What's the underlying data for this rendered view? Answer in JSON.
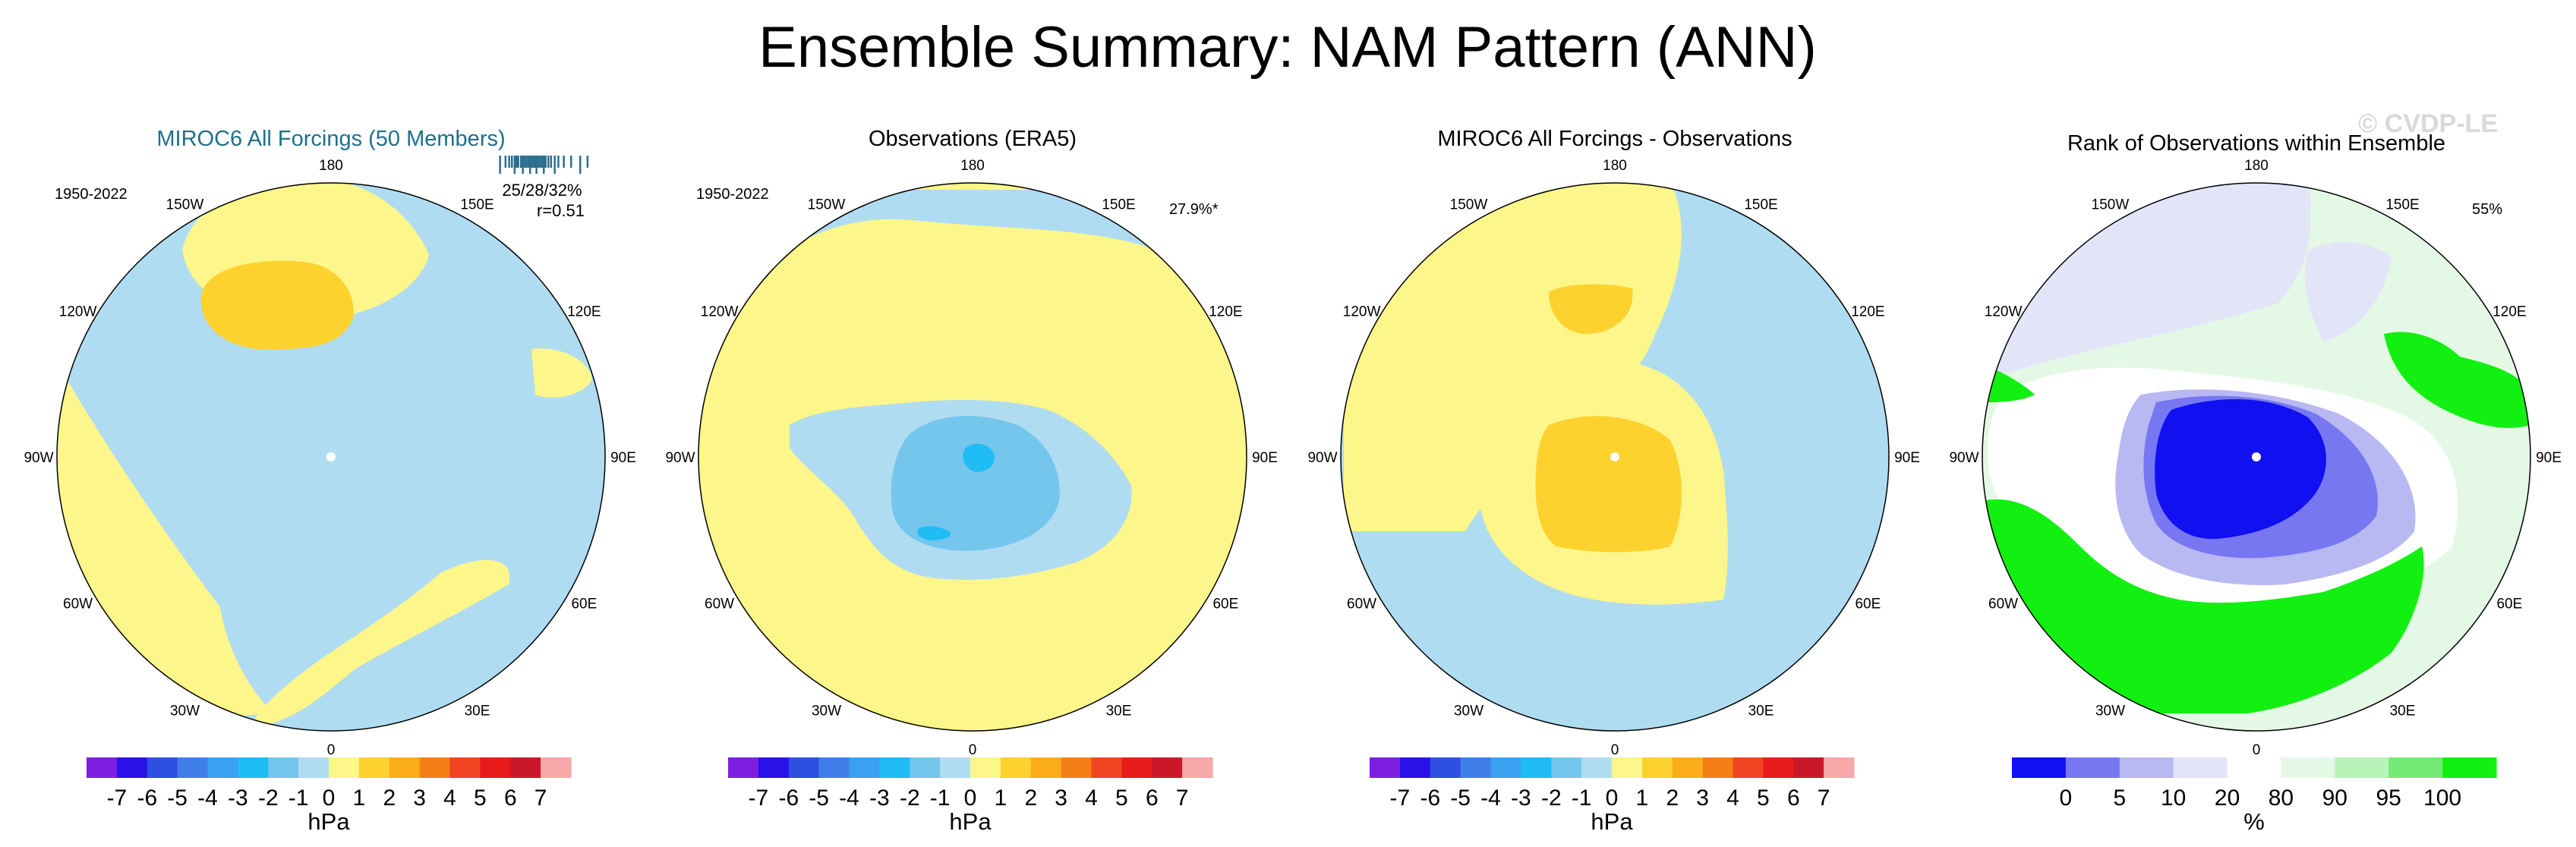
{
  "figure": {
    "title": "Ensemble Summary: NAM Pattern (ANN)",
    "watermark": "© CVDP-LE",
    "lon_labels": [
      "180",
      "150E",
      "120E",
      "90E",
      "60E",
      "30E",
      "0",
      "30W",
      "60W",
      "90W",
      "120W",
      "150W"
    ]
  },
  "palettes": {
    "hpa": [
      "#7e1fe0",
      "#2b12e8",
      "#2f4fe0",
      "#3f7ee8",
      "#3aa0f0",
      "#1fbcf5",
      "#74c6ec",
      "#b0dcf2",
      "#fdf68a",
      "#fdd22e",
      "#fbae19",
      "#f57f17",
      "#f04422",
      "#e81b1b",
      "#c9182a",
      "#f7a8a8"
    ],
    "rank": [
      "#1010f0",
      "#7777f2",
      "#b8b8f2",
      "#e2e4f8",
      "#ffffff",
      "#e4f8e6",
      "#b8f4b8",
      "#74ea74",
      "#12f012"
    ]
  },
  "chart_data": [
    {
      "type": "heatmap",
      "projection": "north-polar-stereographic",
      "title": "MIROC6 All Forcings (50 Members)",
      "title_color": "#1f6f8b",
      "period": "1950-2022",
      "stat_lines": [
        "25/28/32%",
        "r=0.51"
      ],
      "member_ticks": [
        0.02,
        0.08,
        0.12,
        0.15,
        0.18,
        0.2,
        0.22,
        0.25,
        0.27,
        0.29,
        0.31,
        0.33,
        0.35,
        0.37,
        0.39,
        0.4,
        0.42,
        0.44,
        0.46,
        0.48,
        0.5,
        0.52,
        0.55,
        0.58,
        0.62,
        0.66,
        0.72,
        0.8,
        0.9,
        0.98
      ],
      "colorbar": {
        "palette": "hpa",
        "ticks": [
          "-7",
          "-6",
          "-5",
          "-4",
          "-3",
          "-2",
          "-1",
          "0",
          "1",
          "2",
          "3",
          "4",
          "5",
          "6",
          "7"
        ],
        "unit": "hPa"
      }
    },
    {
      "type": "heatmap",
      "projection": "north-polar-stereographic",
      "title": "Observations (ERA5)",
      "title_color": "#000000",
      "period": "1950-2022",
      "stat_lines": [
        "27.9%*"
      ],
      "colorbar": {
        "palette": "hpa",
        "ticks": [
          "-7",
          "-6",
          "-5",
          "-4",
          "-3",
          "-2",
          "-1",
          "0",
          "1",
          "2",
          "3",
          "4",
          "5",
          "6",
          "7"
        ],
        "unit": "hPa"
      }
    },
    {
      "type": "heatmap",
      "projection": "north-polar-stereographic",
      "title": "MIROC6 All Forcings - Observations",
      "title_color": "#000000",
      "colorbar": {
        "palette": "hpa",
        "ticks": [
          "-7",
          "-6",
          "-5",
          "-4",
          "-3",
          "-2",
          "-1",
          "0",
          "1",
          "2",
          "3",
          "4",
          "5",
          "6",
          "7"
        ],
        "unit": "hPa"
      }
    },
    {
      "type": "heatmap",
      "projection": "north-polar-stereographic",
      "title": "Rank of Observations within Ensemble",
      "title_color": "#000000",
      "stat_lines": [
        "55%"
      ],
      "colorbar": {
        "palette": "rank",
        "ticks": [
          "0",
          "5",
          "10",
          "20",
          "80",
          "90",
          "95",
          "100"
        ],
        "unit": "%"
      }
    }
  ]
}
